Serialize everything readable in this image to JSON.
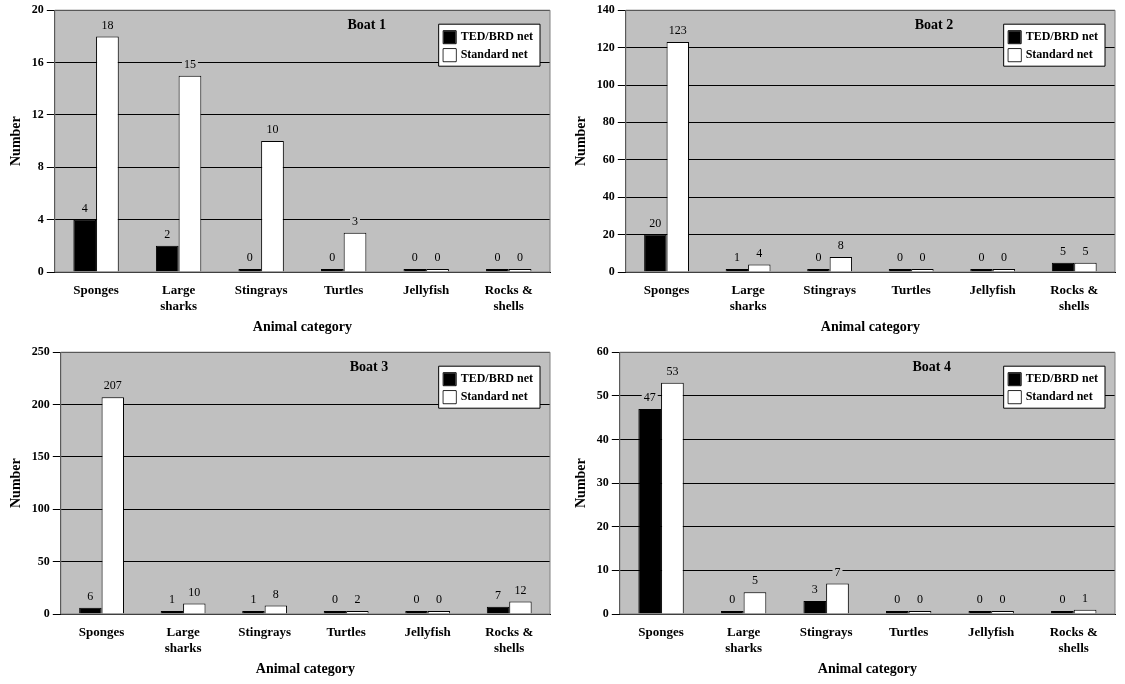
{
  "chart_data": [
    {
      "type": "bar",
      "title": "Boat 1",
      "xlabel": "Animal category",
      "ylabel": "Number",
      "categories": [
        "Sponges",
        "Large sharks",
        "Stingrays",
        "Turtles",
        "Jellyfish",
        "Rocks & shells"
      ],
      "series": [
        {
          "name": "TED/BRD net",
          "color": "#000000",
          "values": [
            4,
            2,
            0,
            0,
            0,
            0
          ]
        },
        {
          "name": "Standard net",
          "color": "#ffffff",
          "values": [
            18,
            15,
            10,
            3,
            0,
            0
          ]
        }
      ],
      "ylim": [
        0,
        20
      ],
      "yticks": [
        0,
        4,
        8,
        12,
        16,
        20
      ],
      "grid": "y",
      "legend": "top right",
      "data_labels": true
    },
    {
      "type": "bar",
      "title": "Boat 2",
      "xlabel": "Animal category",
      "ylabel": "Number",
      "categories": [
        "Sponges",
        "Large sharks",
        "Stingrays",
        "Turtles",
        "Jellyfish",
        "Rocks & shells"
      ],
      "series": [
        {
          "name": "TED/BRD net",
          "color": "#000000",
          "values": [
            20,
            1,
            0,
            0,
            0,
            5
          ]
        },
        {
          "name": "Standard net",
          "color": "#ffffff",
          "values": [
            123,
            4,
            8,
            0,
            0,
            5
          ]
        }
      ],
      "ylim": [
        0,
        140
      ],
      "yticks": [
        0,
        20,
        40,
        60,
        80,
        100,
        120,
        140
      ],
      "grid": "y",
      "legend": "top right",
      "data_labels": true
    },
    {
      "type": "bar",
      "title": "Boat 3",
      "xlabel": "Animal category",
      "ylabel": "Number",
      "categories": [
        "Sponges",
        "Large sharks",
        "Stingrays",
        "Turtles",
        "Jellyfish",
        "Rocks & shells"
      ],
      "series": [
        {
          "name": "TED/BRD net",
          "color": "#000000",
          "values": [
            6,
            1,
            1,
            0,
            0,
            7
          ]
        },
        {
          "name": "Standard net",
          "color": "#ffffff",
          "values": [
            207,
            10,
            8,
            2,
            0,
            12
          ]
        }
      ],
      "ylim": [
        0,
        250
      ],
      "yticks": [
        0,
        50,
        100,
        150,
        200,
        250
      ],
      "grid": "y",
      "legend": "top right",
      "data_labels": true
    },
    {
      "type": "bar",
      "title": "Boat 4",
      "xlabel": "Animal category",
      "ylabel": "Number",
      "categories": [
        "Sponges",
        "Large sharks",
        "Stingrays",
        "Turtles",
        "Jellyfish",
        "Rocks & shells"
      ],
      "series": [
        {
          "name": "TED/BRD net",
          "color": "#000000",
          "values": [
            47,
            0,
            3,
            0,
            0,
            0
          ]
        },
        {
          "name": "Standard net",
          "color": "#ffffff",
          "values": [
            53,
            5,
            7,
            0,
            0,
            1
          ]
        }
      ],
      "ylim": [
        0,
        60
      ],
      "yticks": [
        0,
        10,
        20,
        30,
        40,
        50,
        60
      ],
      "grid": "y",
      "legend": "top right",
      "data_labels": true
    }
  ]
}
